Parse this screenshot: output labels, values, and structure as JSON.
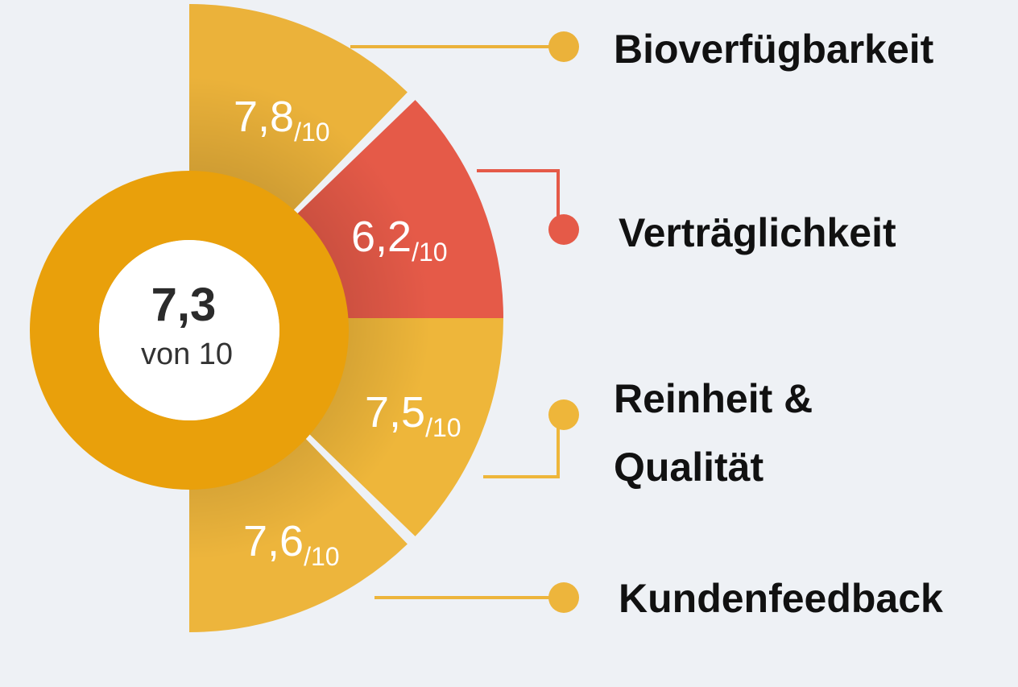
{
  "chart_data": {
    "type": "pie",
    "overall": {
      "value": "7,3",
      "caption": "von 10",
      "color": "#E9A00B"
    },
    "suffix": "/10",
    "segments": [
      {
        "label": "Bioverfügbarkeit",
        "value": 7.8,
        "display": "7,8",
        "color": "#EBB23A"
      },
      {
        "label": "Verträglichkeit",
        "value": 6.2,
        "display": "6,2",
        "color": "#E55A48"
      },
      {
        "label": "Reinheit & Qualität",
        "label_lines": [
          "Reinheit &",
          "Qualität"
        ],
        "value": 7.5,
        "display": "7,5",
        "color": "#EEB63A"
      },
      {
        "label": "Kundenfeedback",
        "value": 7.6,
        "display": "7,6",
        "color": "#EDB53C"
      }
    ]
  }
}
